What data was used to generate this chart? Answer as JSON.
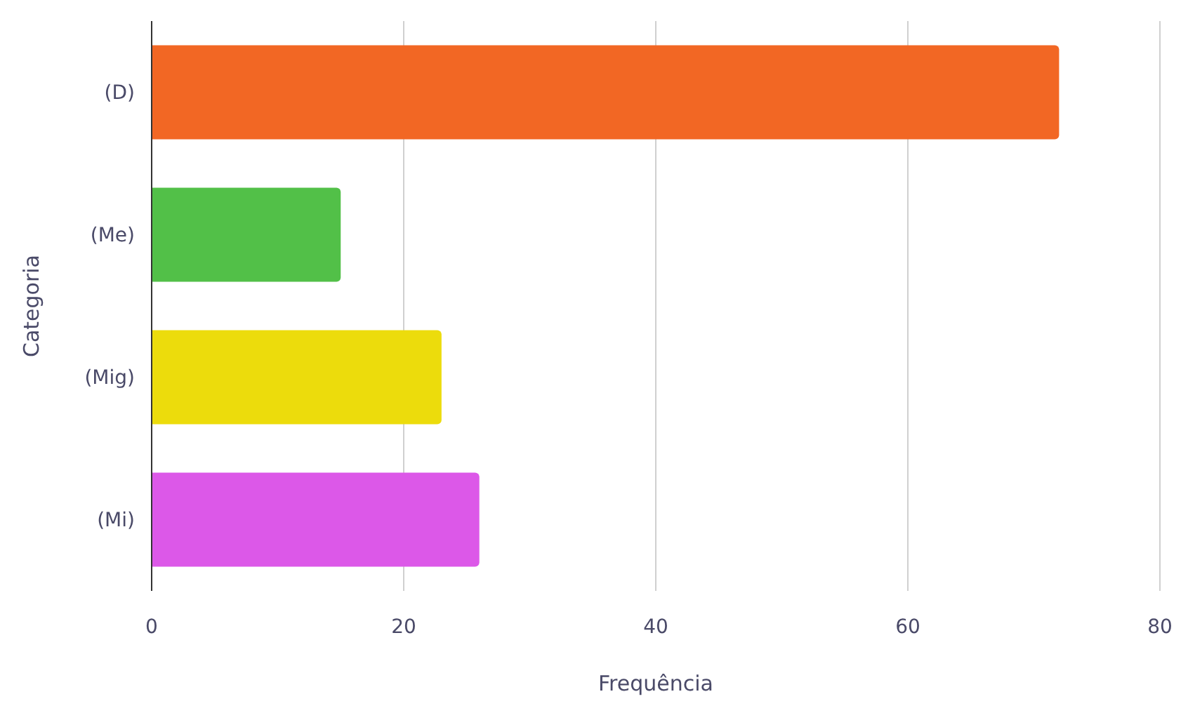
{
  "chart_data": {
    "type": "bar",
    "orientation": "horizontal",
    "xlabel": "Frequência",
    "ylabel": "Categoria",
    "categories": [
      "(D)",
      "(Me)",
      "(Mig)",
      "(Mi)"
    ],
    "values": [
      72,
      15,
      23,
      26
    ],
    "colors": [
      "#f26724",
      "#52c048",
      "#ecdc0c",
      "#dc58e8"
    ],
    "xlim": [
      0,
      80
    ],
    "xticks": [
      0,
      20,
      40,
      60,
      80
    ],
    "grid": "x"
  }
}
